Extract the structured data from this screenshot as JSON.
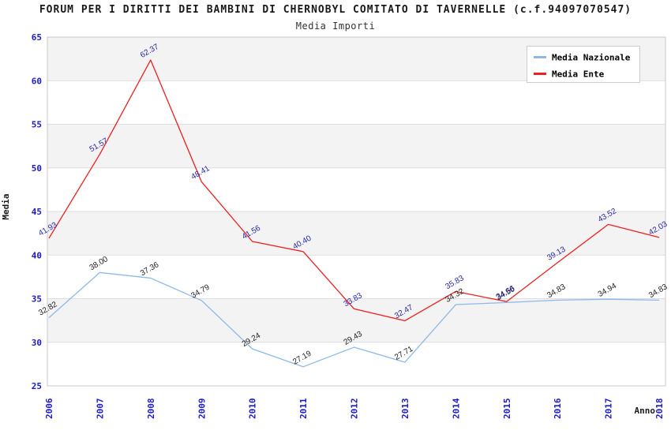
{
  "header": {
    "title": "FORUM PER I DIRITTI DEI BAMBINI DI CHERNOBYL COMITATO DI TAVERNELLE (c.f.94097070547)",
    "subtitle": "Media Importi"
  },
  "chart_data": {
    "type": "line",
    "x": [
      2006,
      2007,
      2008,
      2009,
      2010,
      2011,
      2012,
      2013,
      2014,
      2015,
      2016,
      2017,
      2018
    ],
    "xlabel": "Anno",
    "ylabel": "Media",
    "ylim": [
      25,
      65
    ],
    "ytick_step": 5,
    "yticks": [
      65,
      60,
      55,
      50,
      45,
      40,
      35,
      30,
      25
    ],
    "grid": "horizontal-bands",
    "legend_position": "top-right",
    "value_labels": "shown, rotated -30deg, 2 decimals",
    "series": [
      {
        "name": "Media Nazionale",
        "color": "#8cb9e8",
        "label_color": "#1f1f1f",
        "values": [
          32.82,
          38.0,
          37.36,
          34.79,
          29.24,
          27.19,
          29.43,
          27.71,
          34.32,
          34.56,
          34.83,
          34.94,
          34.83
        ]
      },
      {
        "name": "Media Ente",
        "color": "#ee1f1f",
        "label_color": "#2828a8",
        "values": [
          41.93,
          51.57,
          62.37,
          48.41,
          41.56,
          40.4,
          33.83,
          32.47,
          35.83,
          34.66,
          39.13,
          43.52,
          42.03
        ]
      }
    ]
  },
  "colors": {
    "tick_label": "#1a1acc",
    "band": "#f3f3f3",
    "grid_line": "#dedede",
    "plot_border": "#c9c9c9",
    "legend_border": "#cccccc",
    "background": "#ffffff",
    "title_text": "#1a1a1a"
  }
}
